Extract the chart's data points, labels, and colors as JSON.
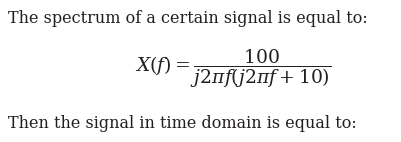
{
  "line1": "The spectrum of a certain signal is equal to:",
  "equation": "$X(f) = \\dfrac{100}{j2\\pi f(j2\\pi f + 10)}$",
  "line3": "Then the signal in time domain is equal to:",
  "bg_color": "#ffffff",
  "text_color": "#231f20",
  "font_size_body": 11.5,
  "font_size_eq": 13.5,
  "fig_width": 4.02,
  "fig_height": 1.42,
  "dpi": 100
}
